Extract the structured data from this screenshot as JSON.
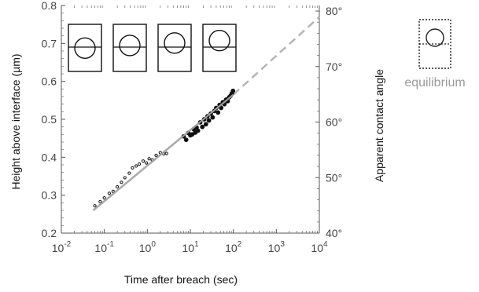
{
  "chart_data": {
    "type": "scatter",
    "title": "",
    "xlabel": "Time after breach (sec)",
    "ylabel": "Height above interface (µm)",
    "y2label": "Apparent contact angle",
    "xscale": "log",
    "xlim": [
      0.01,
      10000
    ],
    "ylim": [
      0.2,
      0.8
    ],
    "y2lim": [
      40,
      81
    ],
    "x_ticks": [
      {
        "value": 0.01,
        "base": "10",
        "exp": "-2"
      },
      {
        "value": 0.1,
        "base": "10",
        "exp": "-1"
      },
      {
        "value": 1,
        "base": "10",
        "exp": "0"
      },
      {
        "value": 10,
        "base": "10",
        "exp": "1"
      },
      {
        "value": 100,
        "base": "10",
        "exp": "2"
      },
      {
        "value": 1000,
        "base": "10",
        "exp": "3"
      },
      {
        "value": 10000,
        "base": "10",
        "exp": "4"
      }
    ],
    "y_ticks": [
      {
        "value": 0.2,
        "label": "0.2"
      },
      {
        "value": 0.3,
        "label": "0.3"
      },
      {
        "value": 0.4,
        "label": "0.4"
      },
      {
        "value": 0.5,
        "label": "0.5"
      },
      {
        "value": 0.6,
        "label": "0.6"
      },
      {
        "value": 0.7,
        "label": "0.7"
      },
      {
        "value": 0.8,
        "label": "0.8"
      }
    ],
    "y2_ticks": [
      {
        "value": 40,
        "label": "40°"
      },
      {
        "value": 50,
        "label": "50°"
      },
      {
        "value": 60,
        "label": "60°"
      },
      {
        "value": 70,
        "label": "70°"
      },
      {
        "value": 80,
        "label": "80°"
      }
    ],
    "series": [
      {
        "kind": "points",
        "color": "#111111",
        "x": [
          0.06,
          0.08,
          0.1,
          0.13,
          0.16,
          0.2,
          0.25,
          0.3,
          0.38,
          0.45,
          0.55,
          0.65,
          0.8,
          0.95,
          1.1,
          1.3,
          1.6,
          2.0,
          2.4,
          2.8,
          7,
          8,
          9,
          10,
          11,
          12,
          13,
          14,
          15,
          17,
          19,
          21,
          23,
          25,
          27,
          30,
          33,
          36,
          40,
          44,
          48,
          52,
          57,
          62,
          68,
          74,
          80,
          86,
          92,
          98
        ],
        "y": [
          0.272,
          0.283,
          0.293,
          0.305,
          0.31,
          0.322,
          0.334,
          0.346,
          0.358,
          0.372,
          0.377,
          0.382,
          0.39,
          0.385,
          0.396,
          0.393,
          0.405,
          0.412,
          0.409,
          0.41,
          0.455,
          0.446,
          0.464,
          0.458,
          0.46,
          0.474,
          0.465,
          0.478,
          0.47,
          0.492,
          0.48,
          0.5,
          0.487,
          0.508,
          0.497,
          0.515,
          0.505,
          0.522,
          0.53,
          0.518,
          0.538,
          0.53,
          0.545,
          0.54,
          0.552,
          0.548,
          0.558,
          0.562,
          0.568,
          0.575
        ]
      },
      {
        "kind": "fit",
        "color": "#aaaaaa",
        "x": [
          0.055,
          100
        ],
        "y": [
          0.26,
          0.565
        ]
      },
      {
        "kind": "extrapolation",
        "color": "#b5b5b5",
        "dashed": true,
        "x": [
          100,
          10000
        ],
        "y": [
          0.565,
          0.77
        ]
      }
    ],
    "insets": [
      {
        "label": "",
        "circle_offset": 0.55
      },
      {
        "label": "",
        "circle_offset": 0.42
      },
      {
        "label": "",
        "circle_offset": 0.3
      },
      {
        "label": "",
        "circle_offset": 0.18
      }
    ],
    "equilibrium_label": "equilibrium",
    "grid": false
  }
}
